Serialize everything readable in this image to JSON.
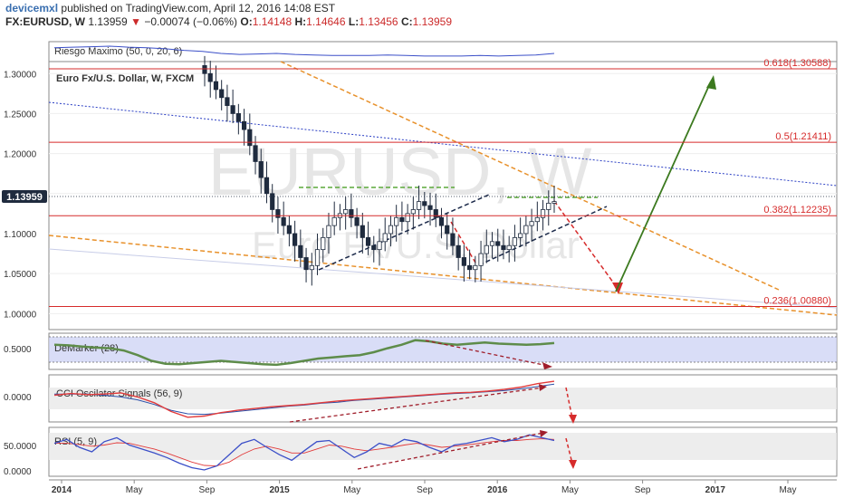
{
  "header": {
    "author": "devicemxl",
    "published": "published on TradingView.com, April 12, 2016 14:08 EST",
    "symbol": "FX:EURUSD, W",
    "last": "1.13959",
    "arrow": "▼",
    "change": "−0.00074 (−0.06%)",
    "o_label": "O:",
    "o": "1.14148",
    "h_label": "H:",
    "h": "1.14646",
    "l_label": "L:",
    "l": "1.13456",
    "c_label": "C:",
    "c": "1.13959"
  },
  "colors": {
    "candle": "#1f2b3e",
    "fib_line": "#d62b2b",
    "fib_text": "#d62b2b",
    "trend_orange": "#e8912b",
    "trend_blue": "#2b3fc4",
    "channel_black": "#1c2a4a",
    "green_arrow": "#3c7a1f",
    "red_arrow": "#d62b2b",
    "demarker_line": "#5e8c4a",
    "demarker_band": "#c9cef3",
    "cci_line": "#e23b3b",
    "signal_line": "#2b4fa8",
    "price_badge": "#1f2b3e",
    "divergence": "#a01e2b"
  },
  "chart_data": [
    {
      "type": "line",
      "title": "Riesgo Maximo (50, 0, 20, 6)",
      "series": [
        {
          "values": [
            0.85,
            0.86,
            0.87,
            0.88,
            0.86,
            0.85,
            0.83,
            0.8,
            0.78,
            0.74,
            0.72,
            0.73,
            0.74,
            0.72,
            0.71,
            0.7,
            0.7,
            0.7,
            0.71,
            0.7,
            0.69,
            0.69,
            0.69,
            0.7,
            0.69,
            0.7,
            0.71,
            0.74
          ]
        }
      ]
    },
    {
      "type": "candlestick",
      "title": "Euro Fx/U.S. Dollar, W, FXCM",
      "watermark": [
        "EURUSD, W",
        "Euro Fx/U.S. Dollar"
      ],
      "y_ticks": [
        "1.30000",
        "1.25000",
        "1.20000",
        "1.15000",
        "1.10000",
        "1.05000",
        "1.00000"
      ],
      "ylim": [
        0.98,
        1.315
      ],
      "x_ticks": [
        "2014",
        "May",
        "Sep",
        "2015",
        "May",
        "Sep",
        "2016",
        "May",
        "Sep",
        "2017",
        "May"
      ],
      "last_price_label": "1.13959",
      "fib_levels": [
        {
          "label": "0.618(1.30588)",
          "value": 1.30588
        },
        {
          "label": "0.5(1.21411)",
          "value": 1.21411
        },
        {
          "label": "0.382(1.12235)",
          "value": 1.12235
        },
        {
          "label": "0.236(1.00880)",
          "value": 1.0088
        }
      ],
      "closes": [
        1.3,
        1.29,
        1.28,
        1.27,
        1.26,
        1.25,
        1.24,
        1.23,
        1.21,
        1.19,
        1.17,
        1.15,
        1.13,
        1.12,
        1.11,
        1.1,
        1.085,
        1.07,
        1.055,
        1.06,
        1.08,
        1.095,
        1.11,
        1.12,
        1.125,
        1.13,
        1.12,
        1.11,
        1.095,
        1.085,
        1.08,
        1.09,
        1.1,
        1.11,
        1.12,
        1.115,
        1.125,
        1.13,
        1.14,
        1.135,
        1.13,
        1.12,
        1.11,
        1.1,
        1.085,
        1.07,
        1.06,
        1.055,
        1.06,
        1.075,
        1.085,
        1.09,
        1.085,
        1.08,
        1.085,
        1.095,
        1.1,
        1.11,
        1.115,
        1.12,
        1.13,
        1.138,
        1.14
      ]
    },
    {
      "type": "line",
      "title": "DeMarker (28)",
      "y_ticks": [
        "0.5000"
      ],
      "series": [
        {
          "values": [
            0.58,
            0.57,
            0.55,
            0.53,
            0.52,
            0.48,
            0.4,
            0.3,
            0.25,
            0.24,
            0.26,
            0.28,
            0.3,
            0.28,
            0.26,
            0.24,
            0.23,
            0.26,
            0.3,
            0.34,
            0.36,
            0.38,
            0.4,
            0.45,
            0.52,
            0.58,
            0.66,
            0.64,
            0.6,
            0.58,
            0.6,
            0.62,
            0.6,
            0.59,
            0.58,
            0.59,
            0.61
          ]
        }
      ]
    },
    {
      "type": "line",
      "title": "CCI Oscilator Signals (56, 9)",
      "y_ticks": [
        "0.0000"
      ],
      "series": [
        {
          "values": [
            -0.02,
            0.01,
            -0.01,
            0.0,
            0.02,
            -0.05,
            -0.15,
            -0.3,
            -0.4,
            -0.38,
            -0.32,
            -0.28,
            -0.25,
            -0.22,
            -0.2,
            -0.18,
            -0.15,
            -0.12,
            -0.1,
            -0.08,
            -0.06,
            -0.04,
            -0.02,
            0.0,
            0.02,
            0.03,
            0.05,
            0.08,
            0.12,
            0.18,
            0.22
          ]
        },
        {
          "values": [
            0.0,
            0.0,
            0.0,
            -0.02,
            -0.05,
            -0.1,
            -0.18,
            -0.28,
            -0.34,
            -0.35,
            -0.33,
            -0.3,
            -0.27,
            -0.24,
            -0.21,
            -0.19,
            -0.16,
            -0.14,
            -0.11,
            -0.09,
            -0.07,
            -0.05,
            -0.03,
            -0.01,
            0.01,
            0.02,
            0.04,
            0.06,
            0.09,
            0.13,
            0.17
          ]
        }
      ]
    },
    {
      "type": "line",
      "title": "RSI (5, 9)",
      "y_ticks": [
        "50.0000",
        "0.0000"
      ],
      "series": [
        {
          "values": [
            55,
            62,
            48,
            40,
            58,
            65,
            52,
            45,
            38,
            30,
            20,
            12,
            8,
            15,
            35,
            55,
            62,
            48,
            35,
            25,
            42,
            58,
            60,
            45,
            30,
            40,
            55,
            50,
            62,
            58,
            48,
            40,
            52,
            55,
            60,
            65,
            58,
            62,
            70,
            65,
            60
          ]
        },
        {
          "values": [
            55,
            55,
            53,
            50,
            52,
            56,
            55,
            50,
            45,
            38,
            30,
            22,
            16,
            15,
            22,
            35,
            45,
            50,
            45,
            38,
            38,
            45,
            52,
            50,
            45,
            42,
            45,
            48,
            52,
            55,
            52,
            48,
            50,
            52,
            55,
            58,
            60,
            60,
            62,
            63,
            62
          ]
        }
      ]
    }
  ]
}
